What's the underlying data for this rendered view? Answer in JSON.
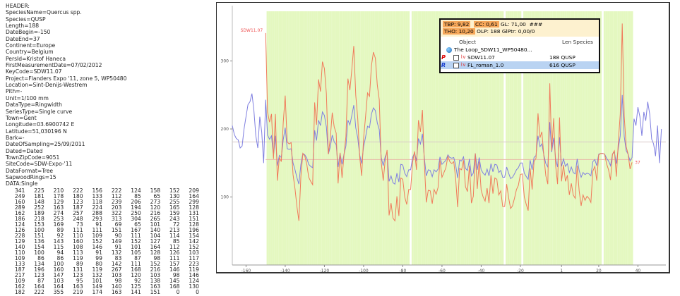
{
  "header_lines": [
    "HEADER:",
    "SpeciesName=Quercus spp.",
    "Species=QUSP",
    "Length=188",
    "DateBegin=-150",
    "DateEnd=37",
    "Continent=Europe",
    "Country=Belgium",
    "PersId=Kristof Haneca",
    "FirstMeasurementDate=07/02/2012",
    "KeyCode=SDW11.07",
    "Project=Flanders Expo '11, zone 5, WP50480",
    "Location=Sint-Denijs-Westrem",
    "Pith=-",
    "Unit=1/100 mm",
    "DataType=Ringwidth",
    "SeriesType=Single curve",
    "Town=Gent",
    "Longitude=03.6900742 E",
    "Latitude=51,030196 N",
    "Bark=-",
    "DateOfSampling=25/09/2011",
    "Dated=Dated",
    "TownZipCode=9051",
    "SiteCode=SDW-Expo-'11",
    "DataFormat=Tree",
    "SapwoodRings=15",
    "DATA:Single"
  ],
  "data_rows": [
    [
      341,
      225,
      210,
      222,
      156,
      222,
      124,
      158,
      152,
      209
    ],
    [
      249,
      181,
      178,
      180,
      133,
      112,
      85,
      65,
      130,
      164
    ],
    [
      160,
      148,
      129,
      123,
      118,
      239,
      206,
      273,
      255,
      299
    ],
    [
      289,
      252,
      163,
      187,
      224,
      203,
      194,
      120,
      165,
      128
    ],
    [
      162,
      189,
      274,
      257,
      288,
      322,
      250,
      216,
      159,
      131
    ],
    [
      186,
      218,
      253,
      248,
      293,
      313,
      304,
      265,
      243,
      151
    ],
    [
      124,
      153,
      169,
      73,
      91,
      69,
      65,
      101,
      72,
      128
    ],
    [
      126,
      100,
      89,
      111,
      111,
      151,
      167,
      140,
      213,
      196
    ],
    [
      228,
      151,
      92,
      110,
      109,
      90,
      111,
      104,
      114,
      154
    ],
    [
      129,
      136,
      143,
      160,
      152,
      149,
      152,
      127,
      85,
      142
    ],
    [
      140,
      154,
      115,
      108,
      146,
      91,
      101,
      164,
      112,
      152
    ],
    [
      110,
      100,
      94,
      113,
      91,
      132,
      105,
      128,
      126,
      103
    ],
    [
      109,
      86,
      86,
      119,
      99,
      83,
      87,
      98,
      111,
      117
    ],
    [
      133,
      134,
      100,
      89,
      80,
      142,
      111,
      152,
      157,
      223
    ],
    [
      187,
      196,
      160,
      131,
      119,
      267,
      168,
      216,
      146,
      119
    ],
    [
      217,
      123,
      147,
      123,
      132,
      103,
      120,
      103,
      98,
      146
    ],
    [
      109,
      87,
      103,
      95,
      101,
      98,
      92,
      138,
      145,
      124
    ],
    [
      162,
      164,
      164,
      163,
      149,
      140,
      125,
      163,
      168,
      130
    ],
    [
      182,
      222,
      355,
      219,
      174,
      163,
      141,
      151,
      0,
      0
    ]
  ],
  "overlay": {
    "tbp_label": "TBP: 9,82",
    "cc_label": "CC: 0,61",
    "gl_label": "GL: 71,00",
    "hashes": "###",
    "tho_label": "THO: 10,20",
    "olp_label": "OLP: 188",
    "glptr_label": "GlPtr: 0,00/0",
    "col_object": "Object",
    "col_len_species": "Len Species",
    "project_row": "The Loop_SDW11_WP50480...",
    "rows": [
      {
        "marker": "P",
        "name": "SDW11.07",
        "len_species": "188 QUSP",
        "selected": false
      },
      {
        "marker": "R",
        "name": "FL_roman_1.0",
        "len_species": "616 QUSP",
        "selected": true
      }
    ]
  },
  "chart_data": {
    "type": "line",
    "xlabel": "",
    "ylabel": "",
    "x_ticks": [
      -160,
      -140,
      -120,
      -100,
      -80,
      -60,
      -40,
      -20,
      1,
      20,
      40
    ],
    "x_tick_labels": [
      "-160",
      "-140",
      "-120",
      "-100",
      "-80",
      "-60",
      "-40",
      "-20",
      "1",
      "20",
      "40"
    ],
    "y_ticks": [
      100,
      200,
      300
    ],
    "y_tick_labels": [
      "100",
      "200",
      "300"
    ],
    "xlim": [
      -167,
      55
    ],
    "ylim": [
      0,
      390
    ],
    "sample_label": "SDW11.07",
    "end_label": "37",
    "sample_mean": 155,
    "reference_mean": 181,
    "highlight_color": "#e4f8c0",
    "series": [
      {
        "name": "SDW11.07",
        "color": "#f07a5a",
        "start": -150,
        "values": [
          341,
          225,
          210,
          222,
          156,
          222,
          124,
          158,
          152,
          209,
          249,
          181,
          178,
          180,
          133,
          112,
          85,
          65,
          130,
          164,
          160,
          148,
          129,
          123,
          118,
          239,
          206,
          273,
          255,
          299,
          289,
          252,
          163,
          187,
          224,
          203,
          194,
          120,
          165,
          128,
          162,
          189,
          274,
          257,
          288,
          322,
          250,
          216,
          159,
          131,
          186,
          218,
          253,
          248,
          293,
          313,
          304,
          265,
          243,
          151,
          124,
          153,
          169,
          73,
          91,
          69,
          65,
          101,
          72,
          128,
          126,
          100,
          89,
          111,
          111,
          151,
          167,
          140,
          213,
          196,
          228,
          151,
          92,
          110,
          109,
          90,
          111,
          104,
          114,
          154,
          129,
          136,
          143,
          160,
          152,
          149,
          152,
          127,
          85,
          142,
          140,
          154,
          115,
          108,
          146,
          91,
          101,
          164,
          112,
          152,
          110,
          100,
          94,
          113,
          91,
          132,
          105,
          128,
          126,
          103,
          109,
          86,
          86,
          119,
          99,
          83,
          87,
          98,
          111,
          117,
          133,
          134,
          100,
          89,
          80,
          142,
          111,
          152,
          157,
          223,
          187,
          196,
          160,
          131,
          119,
          267,
          168,
          216,
          146,
          119,
          217,
          123,
          147,
          123,
          132,
          103,
          120,
          103,
          98,
          146,
          109,
          87,
          103,
          95,
          101,
          98,
          92,
          138,
          145,
          124,
          162,
          164,
          164,
          163,
          149,
          140,
          125,
          163,
          168,
          130,
          182,
          222,
          355,
          219,
          174,
          163,
          141,
          151
        ]
      },
      {
        "name": "FL_roman_1.0",
        "color": "#7f7fe0",
        "start": -167,
        "values": [
          205,
          192,
          186,
          184,
          172,
          175,
          200,
          218,
          236,
          240,
          252,
          228,
          190,
          172,
          218,
          196,
          150,
          243,
          191,
          185,
          190,
          160,
          190,
          146,
          161,
          158,
          184,
          202,
          171,
          170,
          171,
          150,
          140,
          128,
          119,
          148,
          164,
          162,
          157,
          148,
          145,
          143,
          198,
          183,
          213,
          205,
          225,
          220,
          203,
          163,
          174,
          191,
          181,
          177,
          144,
          164,
          148,
          163,
          175,
          213,
          206,
          220,
          235,
          202,
          187,
          162,
          149,
          174,
          188,
          204,
          202,
          222,
          231,
          227,
          209,
          199,
          158,
          146,
          159,
          166,
          123,
          131,
          121,
          119,
          135,
          122,
          148,
          147,
          135,
          130,
          140,
          140,
          158,
          165,
          153,
          186,
          178,
          193,
          158,
          131,
          140,
          139,
          130,
          140,
          137,
          141,
          159,
          148,
          151,
          154,
          162,
          158,
          157,
          158,
          147,
          128,
          154,
          153,
          159,
          142,
          139,
          156,
          131,
          135,
          164,
          140,
          158,
          140,
          135,
          132,
          141,
          131,
          149,
          137,
          148,
          147,
          136,
          139,
          129,
          129,
          144,
          135,
          127,
          129,
          134,
          140,
          143,
          150,
          150,
          135,
          130,
          126,
          154,
          140,
          158,
          161,
          190,
          174,
          178,
          162,
          149,
          144,
          210,
          166,
          187,
          156,
          144,
          188,
          145,
          156,
          145,
          149,
          136,
          144,
          136,
          134,
          156,
          139,
          129,
          136,
          133,
          135,
          134,
          131,
          152,
          155,
          146,
          163,
          164,
          164,
          163,
          157,
          153,
          146,
          163,
          166,
          149,
          172,
          190,
          250,
          189,
          168,
          163,
          153,
          158,
          215,
          205,
          232,
          218,
          190,
          225,
          212,
          240,
          222,
          185,
          178,
          160,
          205,
          150,
          200
        ]
      }
    ]
  }
}
